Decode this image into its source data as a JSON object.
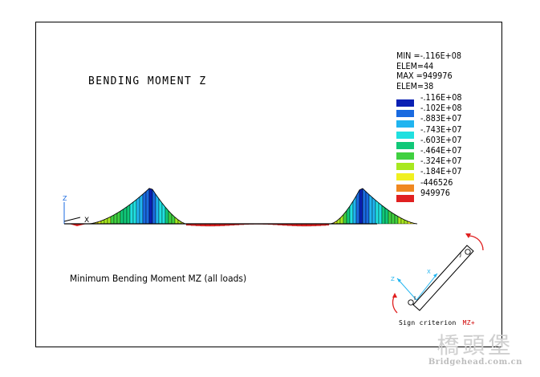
{
  "title": "BENDING MOMENT Z",
  "stats": {
    "min": "MIN =-.116E+08",
    "min_elem": "ELEM=44",
    "max": "MAX =949976",
    "max_elem": "ELEM=38"
  },
  "legend": [
    {
      "label": "-.116E+08",
      "color": "#0a20b4"
    },
    {
      "label": "-.102E+08",
      "color": "#1a6ae0"
    },
    {
      "label": "-.883E+07",
      "color": "#20b4f0"
    },
    {
      "label": "-.743E+07",
      "color": "#20e0e0"
    },
    {
      "label": "-.603E+07",
      "color": "#10c878"
    },
    {
      "label": "-.464E+07",
      "color": "#40d040"
    },
    {
      "label": "-.324E+07",
      "color": "#a8e820"
    },
    {
      "label": "-.184E+07",
      "color": "#f0f020"
    },
    {
      "label": "-446526",
      "color": "#f08820"
    },
    {
      "label": "949976",
      "color": "#e02020"
    }
  ],
  "caption": "Minimum Bending Moment MZ (all loads)",
  "axes": {
    "z": "Z",
    "x": "X"
  },
  "sign": {
    "text": "Sign criterion",
    "mz": "MZ+"
  },
  "element": {
    "i": "I",
    "j": "J",
    "z": "Z",
    "x": "X"
  },
  "watermark": {
    "logo": "橋頭堡",
    "url": "Bridgehead.com.cn"
  }
}
